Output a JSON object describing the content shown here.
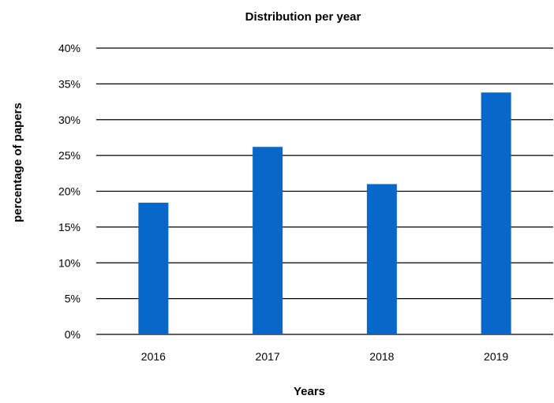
{
  "chart_data": {
    "type": "bar",
    "title": "Distribution per year",
    "xlabel": "Years",
    "ylabel": "percentage of papers",
    "categories": [
      "2016",
      "2017",
      "2018",
      "2019"
    ],
    "values": [
      18.4,
      26.2,
      21.0,
      33.8
    ],
    "ylim": [
      0,
      40
    ],
    "y_ticks": [
      "0%",
      "5%",
      "10%",
      "15%",
      "20%",
      "25%",
      "30%",
      "35%",
      "40%"
    ],
    "y_tick_values": [
      0,
      5,
      10,
      15,
      20,
      25,
      30,
      35,
      40
    ],
    "grid": true,
    "legend": "none",
    "bar_color": "#0868c9"
  }
}
